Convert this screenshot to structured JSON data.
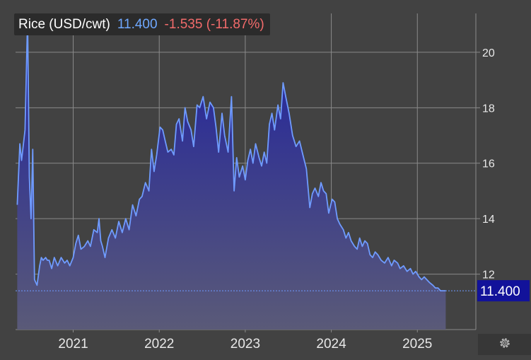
{
  "legend": {
    "name": "Rice (USD/cwt)",
    "last": "11.400",
    "change": "-1.535 (-11.87%)"
  },
  "colors": {
    "background": "#424242",
    "grid": "#8a8a8a",
    "line": "#6f9bff",
    "area_top": "#1d1fa0",
    "area_bottom": "#5a5a78",
    "last_badge": "#12129a",
    "positive": "#6fa8ff",
    "negative": "#f26b6b"
  },
  "settings_icon": "gear-icon",
  "chart_data": {
    "type": "area",
    "title": "",
    "xlabel": "",
    "ylabel": "",
    "xlim": [
      2020.33,
      2025.68
    ],
    "ylim": [
      10.0,
      21.4
    ],
    "x_ticks": [
      2021,
      2022,
      2023,
      2024,
      2025
    ],
    "x_tick_labels": [
      "2021",
      "2022",
      "2023",
      "2024",
      "2025"
    ],
    "y_ticks": [
      12,
      14,
      16,
      18,
      20
    ],
    "y_tick_labels": [
      "12",
      "14",
      "16",
      "18",
      "20"
    ],
    "grid": true,
    "last_value": 11.4,
    "last_value_label": "11.400",
    "series": [
      {
        "x": [
          2020.35,
          2020.38,
          2020.4,
          2020.44,
          2020.47,
          2020.49,
          2020.51,
          2020.53,
          2020.55,
          2020.58,
          2020.61,
          2020.63,
          2020.65,
          2020.68,
          2020.7,
          2020.72,
          2020.75,
          2020.78,
          2020.82,
          2020.86,
          2020.9,
          2020.93,
          2020.96,
          2021.0,
          2021.03,
          2021.06,
          2021.09,
          2021.13,
          2021.17,
          2021.2,
          2021.24,
          2021.28,
          2021.3,
          2021.32,
          2021.34,
          2021.37,
          2021.41,
          2021.45,
          2021.49,
          2021.53,
          2021.57,
          2021.61,
          2021.65,
          2021.69,
          2021.73,
          2021.77,
          2021.8,
          2021.84,
          2021.88,
          2021.91,
          2021.94,
          2021.97,
          2022.01,
          2022.04,
          2022.07,
          2022.1,
          2022.14,
          2022.17,
          2022.2,
          2022.23,
          2022.27,
          2022.3,
          2022.33,
          2022.37,
          2022.4,
          2022.44,
          2022.47,
          2022.51,
          2022.55,
          2022.59,
          2022.63,
          2022.66,
          2022.69,
          2022.73,
          2022.76,
          2022.8,
          2022.84,
          2022.87,
          2022.9,
          2022.93,
          2022.97,
          2023.0,
          2023.03,
          2023.06,
          2023.09,
          2023.12,
          2023.16,
          2023.19,
          2023.22,
          2023.25,
          2023.28,
          2023.31,
          2023.34,
          2023.38,
          2023.41,
          2023.44,
          2023.47,
          2023.51,
          2023.55,
          2023.59,
          2023.63,
          2023.67,
          2023.71,
          2023.75,
          2023.78,
          2023.81,
          2023.85,
          2023.88,
          2023.91,
          2023.94,
          2023.97,
          2024.01,
          2024.04,
          2024.07,
          2024.1,
          2024.14,
          2024.17,
          2024.2,
          2024.23,
          2024.27,
          2024.3,
          2024.33,
          2024.36,
          2024.39,
          2024.42,
          2024.45,
          2024.48,
          2024.51,
          2024.54,
          2024.58,
          2024.62,
          2024.66,
          2024.7,
          2024.73,
          2024.77,
          2024.8,
          2024.84,
          2024.88,
          2024.92,
          2024.95,
          2024.98,
          2025.02,
          2025.05,
          2025.08,
          2025.11,
          2025.14,
          2025.18,
          2025.21,
          2025.24,
          2025.27,
          2025.3,
          2025.33
        ],
        "values": [
          14.5,
          16.7,
          16.1,
          17.2,
          21.2,
          15.5,
          14.0,
          16.5,
          11.8,
          11.6,
          12.3,
          12.6,
          12.5,
          12.6,
          12.5,
          12.5,
          12.2,
          12.6,
          12.3,
          12.6,
          12.4,
          12.5,
          12.3,
          12.6,
          13.1,
          13.4,
          12.9,
          13.0,
          13.2,
          13.0,
          13.6,
          13.5,
          14.0,
          13.2,
          13.0,
          12.6,
          13.3,
          13.6,
          13.3,
          13.9,
          13.5,
          14.0,
          13.6,
          14.5,
          14.1,
          14.7,
          14.8,
          15.3,
          15.0,
          16.5,
          15.7,
          16.3,
          17.3,
          17.2,
          16.8,
          16.4,
          16.5,
          16.3,
          17.4,
          17.6,
          16.8,
          18.0,
          17.5,
          17.2,
          16.6,
          18.1,
          18.0,
          18.4,
          17.6,
          18.2,
          18.0,
          17.3,
          16.4,
          17.8,
          17.0,
          16.4,
          18.4,
          15.0,
          16.2,
          15.5,
          15.9,
          15.4,
          16.1,
          16.5,
          16.0,
          16.7,
          16.2,
          15.9,
          16.4,
          16.0,
          17.4,
          17.8,
          17.2,
          18.1,
          17.6,
          18.9,
          18.4,
          17.8,
          17.0,
          16.6,
          16.8,
          16.3,
          15.8,
          14.4,
          14.9,
          15.1,
          14.8,
          15.3,
          15.0,
          14.9,
          14.2,
          14.7,
          14.6,
          14.0,
          13.8,
          13.6,
          13.3,
          13.5,
          13.2,
          13.0,
          12.9,
          13.3,
          13.0,
          13.2,
          13.1,
          12.7,
          12.6,
          12.8,
          12.7,
          12.5,
          12.4,
          12.6,
          12.3,
          12.5,
          12.4,
          12.2,
          12.3,
          12.1,
          12.2,
          12.0,
          12.1,
          11.9,
          11.8,
          11.9,
          11.8,
          11.7,
          11.6,
          11.5,
          11.5,
          11.4,
          11.4,
          11.4
        ]
      }
    ]
  }
}
